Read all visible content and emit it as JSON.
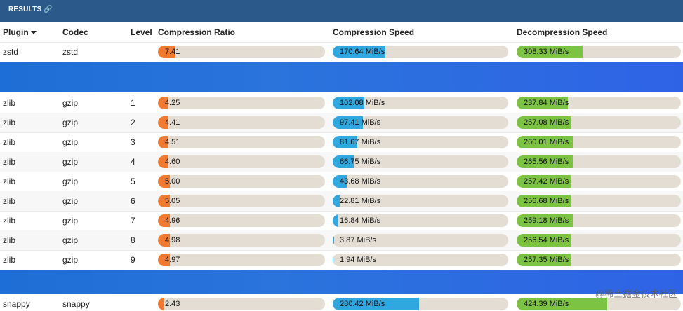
{
  "panel": {
    "title": "RESULTS",
    "link_icon": "link-icon"
  },
  "columns": {
    "plugin": "Plugin",
    "codec": "Codec",
    "level": "Level",
    "ratio": "Compression Ratio",
    "cspeed": "Compression Speed",
    "dspeed": "Decompression Speed"
  },
  "colors": {
    "ratio_bar": "#f07a30",
    "cspeed_bar": "#2fa7df",
    "dspeed_bar": "#7cc243",
    "track": "#e4ddd4",
    "banner": "#2a74dc",
    "topbar": "#2b5a8a"
  },
  "rows": [
    {
      "plugin": "zstd",
      "codec": "zstd",
      "level": "",
      "ratio": "7.41",
      "ratio_fill": 0.105,
      "cspeed": "170.64 MiB/s",
      "cspeed_fill": 0.3,
      "dspeed": "308.33 MiB/s",
      "dspeed_fill": 0.4
    },
    {
      "plugin": "zlib",
      "codec": "gzip",
      "level": "1",
      "ratio": "4.25",
      "ratio_fill": 0.06,
      "cspeed": "102.08 MiB/s",
      "cspeed_fill": 0.18,
      "dspeed": "237.84 MiB/s",
      "dspeed_fill": 0.31
    },
    {
      "plugin": "zlib",
      "codec": "gzip",
      "level": "2",
      "ratio": "4.41",
      "ratio_fill": 0.062,
      "cspeed": "97.41 MiB/s",
      "cspeed_fill": 0.17,
      "dspeed": "257.08 MiB/s",
      "dspeed_fill": 0.33
    },
    {
      "plugin": "zlib",
      "codec": "gzip",
      "level": "3",
      "ratio": "4.51",
      "ratio_fill": 0.064,
      "cspeed": "81.67 MiB/s",
      "cspeed_fill": 0.14,
      "dspeed": "260.01 MiB/s",
      "dspeed_fill": 0.34
    },
    {
      "plugin": "zlib",
      "codec": "gzip",
      "level": "4",
      "ratio": "4.60",
      "ratio_fill": 0.065,
      "cspeed": "66.75 MiB/s",
      "cspeed_fill": 0.12,
      "dspeed": "265.56 MiB/s",
      "dspeed_fill": 0.34
    },
    {
      "plugin": "zlib",
      "codec": "gzip",
      "level": "5",
      "ratio": "5.00",
      "ratio_fill": 0.071,
      "cspeed": "43.68 MiB/s",
      "cspeed_fill": 0.08,
      "dspeed": "257.42 MiB/s",
      "dspeed_fill": 0.33
    },
    {
      "plugin": "zlib",
      "codec": "gzip",
      "level": "6",
      "ratio": "5.05",
      "ratio_fill": 0.072,
      "cspeed": "22.81 MiB/s",
      "cspeed_fill": 0.04,
      "dspeed": "256.68 MiB/s",
      "dspeed_fill": 0.33
    },
    {
      "plugin": "zlib",
      "codec": "gzip",
      "level": "7",
      "ratio": "4.96",
      "ratio_fill": 0.07,
      "cspeed": "16.84 MiB/s",
      "cspeed_fill": 0.03,
      "dspeed": "259.18 MiB/s",
      "dspeed_fill": 0.34
    },
    {
      "plugin": "zlib",
      "codec": "gzip",
      "level": "8",
      "ratio": "4.98",
      "ratio_fill": 0.071,
      "cspeed": "3.87 MiB/s",
      "cspeed_fill": 0.008,
      "dspeed": "256.54 MiB/s",
      "dspeed_fill": 0.33
    },
    {
      "plugin": "zlib",
      "codec": "gzip",
      "level": "9",
      "ratio": "4.97",
      "ratio_fill": 0.07,
      "cspeed": "1.94 MiB/s",
      "cspeed_fill": 0.004,
      "dspeed": "257.35 MiB/s",
      "dspeed_fill": 0.33
    },
    {
      "plugin": "snappy",
      "codec": "snappy",
      "level": "",
      "ratio": "2.43",
      "ratio_fill": 0.034,
      "cspeed": "280.42 MiB/s",
      "cspeed_fill": 0.49,
      "dspeed": "424.39 MiB/s",
      "dspeed_fill": 0.55
    }
  ],
  "watermark": "@稀土掘金技术社区"
}
